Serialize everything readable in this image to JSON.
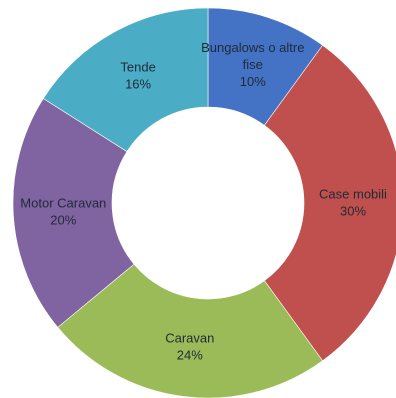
{
  "chart_data": {
    "type": "pie",
    "variant": "donut",
    "title": "",
    "legend": "none",
    "slices": [
      {
        "label": "Bungalows o altre fise",
        "value": 10,
        "display": "10%",
        "color": "#4472C4"
      },
      {
        "label": "Case mobili",
        "value": 30,
        "display": "30%",
        "color": "#C0504D"
      },
      {
        "label": "Caravan",
        "value": 24,
        "display": "24%",
        "color": "#9BBB59"
      },
      {
        "label": "Motor Caravan",
        "value": 20,
        "display": "20%",
        "color": "#8064A2"
      },
      {
        "label": "Tende",
        "value": 16,
        "display": "16%",
        "color": "#4BACC6"
      }
    ]
  }
}
